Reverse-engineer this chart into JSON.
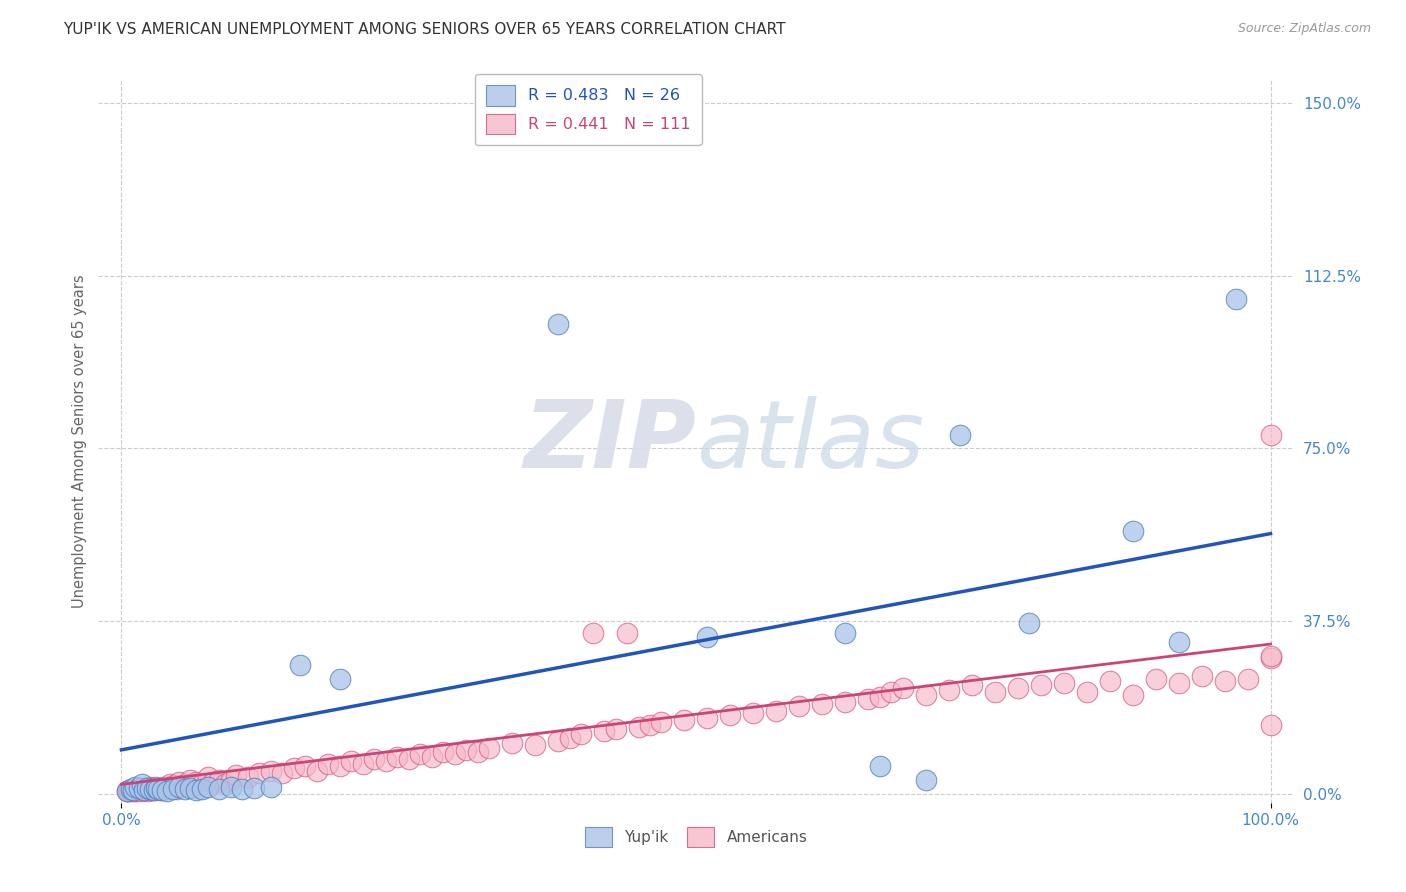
{
  "title": "YUP'IK VS AMERICAN UNEMPLOYMENT AMONG SENIORS OVER 65 YEARS CORRELATION CHART",
  "source": "Source: ZipAtlas.com",
  "ylabel": "Unemployment Among Seniors over 65 years",
  "xlim": [
    -0.02,
    1.02
  ],
  "ylim": [
    -0.02,
    1.55
  ],
  "xticks": [
    0.0,
    1.0
  ],
  "xtick_labels": [
    "0.0%",
    "100.0%"
  ],
  "ytick_labels": [
    "0.0%",
    "37.5%",
    "75.0%",
    "112.5%",
    "150.0%"
  ],
  "yticks": [
    0.0,
    0.375,
    0.75,
    1.125,
    1.5
  ],
  "yupik_color": "#aac4e8",
  "american_color": "#f5b8c8",
  "yupik_edge_color": "#5080c0",
  "american_edge_color": "#d0507a",
  "yupik_line_color": "#2255bb",
  "american_line_color": "#cc4477",
  "tick_color": "#4488cc",
  "watermark_color": "#e0e8f0",
  "background_color": "#ffffff",
  "yupik_x": [
    0.005,
    0.008,
    0.01,
    0.012,
    0.015,
    0.018,
    0.02,
    0.022,
    0.025,
    0.028,
    0.03,
    0.032,
    0.035,
    0.04,
    0.045,
    0.05,
    0.055,
    0.06,
    0.065,
    0.07,
    0.075,
    0.085,
    0.095,
    0.105,
    0.115,
    0.13,
    0.155,
    0.19,
    0.38,
    0.51,
    0.63,
    0.66,
    0.7,
    0.73,
    0.79,
    0.88,
    0.92,
    0.97
  ],
  "yupik_y": [
    0.005,
    0.01,
    0.008,
    0.015,
    0.012,
    0.02,
    0.008,
    0.012,
    0.01,
    0.008,
    0.012,
    0.01,
    0.008,
    0.005,
    0.01,
    0.015,
    0.01,
    0.012,
    0.008,
    0.01,
    0.015,
    0.01,
    0.015,
    0.01,
    0.012,
    0.015,
    0.28,
    0.25,
    1.02,
    0.34,
    0.35,
    0.06,
    0.03,
    0.78,
    0.37,
    0.57,
    0.33,
    1.075
  ],
  "american_x": [
    0.005,
    0.006,
    0.007,
    0.008,
    0.009,
    0.01,
    0.011,
    0.012,
    0.013,
    0.014,
    0.015,
    0.016,
    0.017,
    0.018,
    0.019,
    0.02,
    0.021,
    0.022,
    0.023,
    0.024,
    0.025,
    0.026,
    0.027,
    0.028,
    0.029,
    0.03,
    0.032,
    0.034,
    0.036,
    0.038,
    0.04,
    0.042,
    0.044,
    0.046,
    0.048,
    0.05,
    0.055,
    0.06,
    0.065,
    0.07,
    0.075,
    0.08,
    0.085,
    0.09,
    0.095,
    0.1,
    0.11,
    0.12,
    0.13,
    0.14,
    0.15,
    0.16,
    0.17,
    0.18,
    0.19,
    0.2,
    0.21,
    0.22,
    0.23,
    0.24,
    0.25,
    0.26,
    0.27,
    0.28,
    0.29,
    0.3,
    0.31,
    0.32,
    0.34,
    0.36,
    0.38,
    0.39,
    0.4,
    0.41,
    0.42,
    0.43,
    0.44,
    0.45,
    0.46,
    0.47,
    0.49,
    0.51,
    0.53,
    0.55,
    0.57,
    0.59,
    0.61,
    0.63,
    0.65,
    0.66,
    0.67,
    0.68,
    0.7,
    0.72,
    0.74,
    0.76,
    0.78,
    0.8,
    0.82,
    0.84,
    0.86,
    0.88,
    0.9,
    0.92,
    0.94,
    0.96,
    0.98,
    1.0,
    1.0,
    1.0,
    1.0
  ],
  "american_y": [
    0.005,
    0.005,
    0.008,
    0.005,
    0.008,
    0.01,
    0.005,
    0.008,
    0.01,
    0.005,
    0.008,
    0.01,
    0.012,
    0.005,
    0.01,
    0.008,
    0.012,
    0.01,
    0.005,
    0.015,
    0.008,
    0.012,
    0.01,
    0.008,
    0.015,
    0.01,
    0.012,
    0.008,
    0.015,
    0.01,
    0.015,
    0.02,
    0.012,
    0.018,
    0.01,
    0.025,
    0.02,
    0.03,
    0.025,
    0.02,
    0.035,
    0.025,
    0.03,
    0.02,
    0.03,
    0.04,
    0.035,
    0.045,
    0.05,
    0.045,
    0.055,
    0.06,
    0.05,
    0.065,
    0.06,
    0.07,
    0.065,
    0.075,
    0.07,
    0.08,
    0.075,
    0.085,
    0.08,
    0.09,
    0.085,
    0.095,
    0.09,
    0.1,
    0.11,
    0.105,
    0.115,
    0.12,
    0.13,
    0.35,
    0.135,
    0.14,
    0.35,
    0.145,
    0.15,
    0.155,
    0.16,
    0.165,
    0.17,
    0.175,
    0.18,
    0.19,
    0.195,
    0.2,
    0.205,
    0.21,
    0.22,
    0.23,
    0.215,
    0.225,
    0.235,
    0.22,
    0.23,
    0.235,
    0.24,
    0.22,
    0.245,
    0.215,
    0.25,
    0.24,
    0.255,
    0.245,
    0.25,
    0.295,
    0.3,
    0.15,
    0.78
  ],
  "blue_trend_x0": 0.0,
  "blue_trend_y0": 0.095,
  "blue_trend_x1": 1.0,
  "blue_trend_y1": 0.565,
  "pink_trend_x0": 0.0,
  "pink_trend_y0": 0.02,
  "pink_trend_x1": 1.0,
  "pink_trend_y1": 0.325
}
